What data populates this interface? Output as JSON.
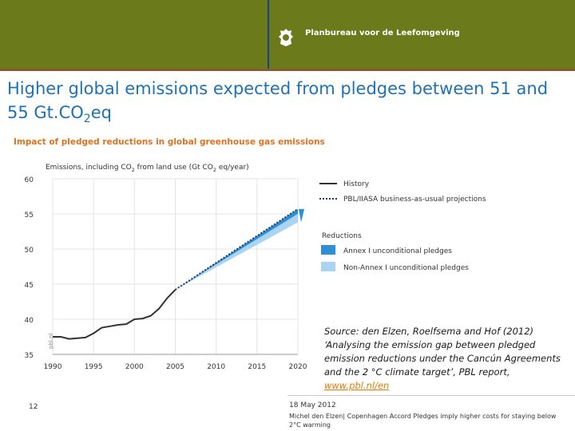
{
  "header": {
    "organization": "Planbureau voor de Leefomgeving",
    "brand_color": "#6b7a1a"
  },
  "slide": {
    "title_part1": "Higher global emissions expected from pledges between 51 and 55 Gt.CO",
    "title_sub": "2",
    "title_part2": "eq"
  },
  "chart_data": {
    "type": "line",
    "title": "Impact of pledged reductions in global greenhouse gas emissions",
    "ylabel_main": "Emissions, including CO",
    "ylabel_sub1": "2",
    "ylabel_mid": " from land use (Gt CO",
    "ylabel_sub2": "2",
    "ylabel_end": " eq/year)",
    "watermark": "pbl.nl",
    "ylim": [
      35,
      60
    ],
    "xlim": [
      1990,
      2020
    ],
    "yticks": [
      35,
      40,
      45,
      50,
      55,
      60
    ],
    "xticks": [
      1990,
      1995,
      2000,
      2005,
      2010,
      2015,
      2020
    ],
    "grid": true,
    "legend_title_reductions": "Reductions",
    "legend": {
      "history": "History",
      "bau": "PBL/IIASA business-as-usual projections",
      "annex": "Annex I unconditional pledges",
      "nonannex": "Non-Annex I unconditional pledges"
    },
    "colors": {
      "history": "#333333",
      "bau": "#1f3a6b",
      "annex": "#2e8fd6",
      "nonannex": "#a9d4f2",
      "title": "#e2711d"
    },
    "series": [
      {
        "name": "History",
        "x": [
          1990,
          1991,
          1992,
          1993,
          1994,
          1995,
          1996,
          1997,
          1998,
          1999,
          2000,
          2001,
          2002,
          2003,
          2004,
          2005
        ],
        "values": [
          37.5,
          37.5,
          37.2,
          37.3,
          37.4,
          38.0,
          38.8,
          39.0,
          39.2,
          39.3,
          40.0,
          40.1,
          40.5,
          41.5,
          43.0,
          44.2
        ]
      },
      {
        "name": "PBL/IIASA business-as-usual projections",
        "x": [
          2005,
          2020
        ],
        "values": [
          44.2,
          55.7
        ]
      }
    ],
    "reductions": {
      "x": [
        2005,
        2020
      ],
      "annex_band": [
        [
          44.2,
          44.2
        ],
        [
          55.7,
          55.0
        ]
      ],
      "nonannex_band": [
        [
          44.2,
          44.2
        ],
        [
          55.0,
          53.8
        ]
      ]
    }
  },
  "source": {
    "text": "Source: den Elzen, Roelfsema and Hof (2012) ‘Analysing the emission gap between pledged emission reductions under the Cancún Agreements and the 2 °C climate target’, PBL report,",
    "link": "www.pbl.nl/en"
  },
  "footer": {
    "page_number": "12",
    "date": "18 May 2012",
    "author": "Michel den Elzen| Copenhagen Accord Pledges imply higher costs for staying below 2°C warming"
  }
}
